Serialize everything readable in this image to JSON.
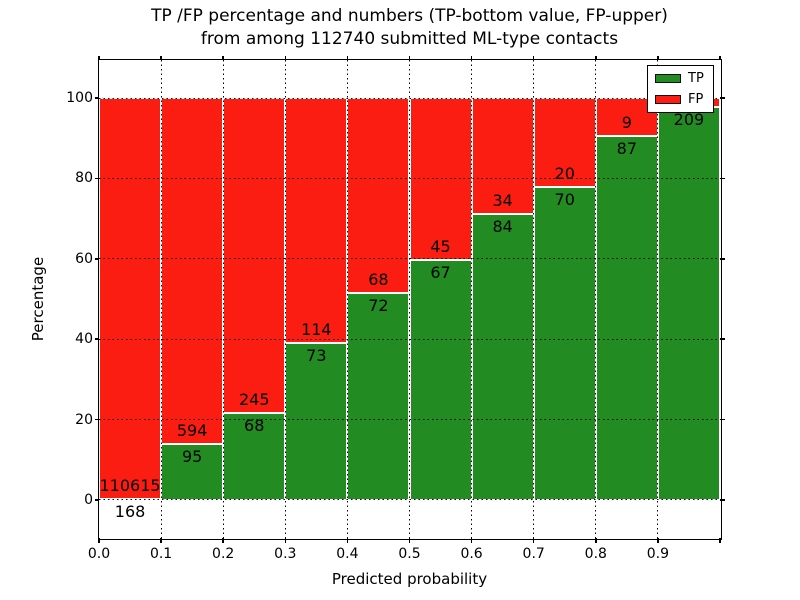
{
  "figure": {
    "title_line1": "TP /FP percentage and numbers (TP-bottom value, FP-upper)",
    "title_line2": "from among 112740 submitted ML-type contacts",
    "xlabel": "Predicted probability",
    "ylabel": "Percentage"
  },
  "legend": {
    "items": [
      {
        "label": "TP",
        "color": "#228b22"
      },
      {
        "label": "FP",
        "color": "#fb1d12"
      }
    ]
  },
  "chart_data": {
    "type": "bar",
    "stacked": true,
    "title": "TP /FP percentage and numbers (TP-bottom value, FP-upper) from among 112740 submitted ML-type contacts",
    "xlabel": "Predicted probability",
    "ylabel": "Percentage",
    "x_tick_labels": [
      "0.0",
      "0.1",
      "0.2",
      "0.3",
      "0.4",
      "0.5",
      "0.6",
      "0.7",
      "0.8",
      "0.9"
    ],
    "y_tick_values": [
      0,
      20,
      40,
      60,
      80,
      100
    ],
    "xlim": [
      0.0,
      1.0
    ],
    "ylim_display": [
      -9.5,
      109.5
    ],
    "grid": true,
    "grid_style": "dotted",
    "legend_position": "upper right",
    "series": [
      {
        "name": "TP",
        "color": "#228b22",
        "position": "bottom"
      },
      {
        "name": "FP",
        "color": "#fb1d12",
        "position": "top"
      }
    ],
    "bars": [
      {
        "bin": "0.0-0.1",
        "tp_count": 168,
        "fp_count": 110615,
        "tp_pct": 0.15
      },
      {
        "bin": "0.1-0.2",
        "tp_count": 95,
        "fp_count": 594,
        "tp_pct": 13.8
      },
      {
        "bin": "0.2-0.3",
        "tp_count": 68,
        "fp_count": 245,
        "tp_pct": 21.7
      },
      {
        "bin": "0.3-0.4",
        "tp_count": 73,
        "fp_count": 114,
        "tp_pct": 39.0
      },
      {
        "bin": "0.4-0.5",
        "tp_count": 72,
        "fp_count": 68,
        "tp_pct": 51.4
      },
      {
        "bin": "0.5-0.6",
        "tp_count": 67,
        "fp_count": 45,
        "tp_pct": 59.8
      },
      {
        "bin": "0.6-0.7",
        "tp_count": 84,
        "fp_count": 34,
        "tp_pct": 71.2
      },
      {
        "bin": "0.7-0.8",
        "tp_count": 70,
        "fp_count": 20,
        "tp_pct": 77.8
      },
      {
        "bin": "0.8-0.9",
        "tp_count": 87,
        "fp_count": 9,
        "tp_pct": 90.6
      },
      {
        "bin": "0.9-1.0",
        "tp_count": 209,
        "fp_count": null,
        "tp_pct": 97.7,
        "fp_label_hidden_behind_legend": true
      }
    ]
  }
}
